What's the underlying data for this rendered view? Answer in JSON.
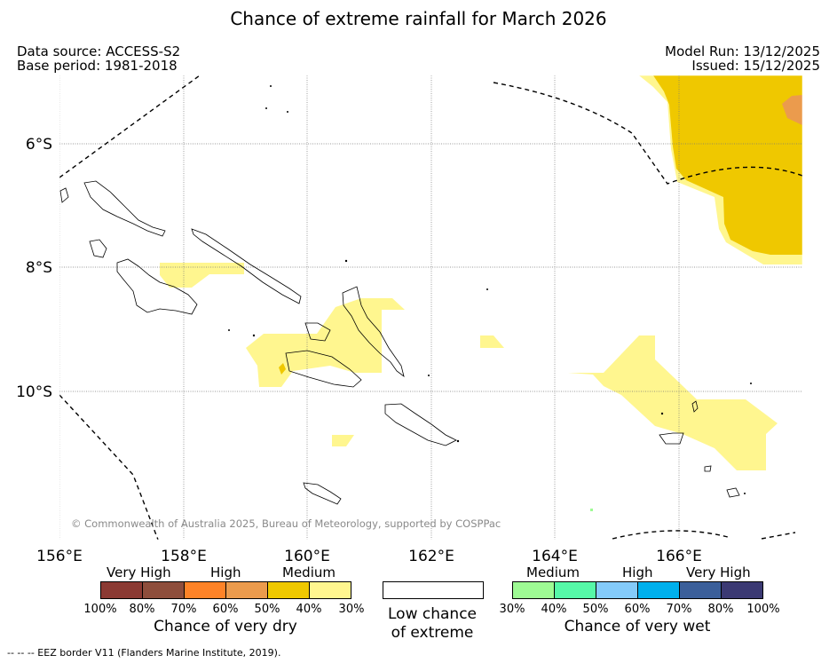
{
  "title": "Chance of extreme rainfall for March 2026",
  "header": {
    "data_source": "Data source: ACCESS-S2",
    "base_period": "Base period: 1981-2018",
    "model_run": "Model Run: 13/12/2025",
    "issued": "Issued: 15/12/2025"
  },
  "map": {
    "lat_labels": [
      "6°S",
      "8°S",
      "10°S"
    ],
    "lon_labels": [
      "156°E",
      "158°E",
      "160°E",
      "162°E",
      "164°E",
      "166°E"
    ],
    "copyright": "© Commonwealth of Australia 2025, Bureau of Meteorology, supported by COSPPac"
  },
  "legend": {
    "dry": {
      "categories": [
        "Very High",
        "High",
        "Medium"
      ],
      "colors": [
        "#8b3a33",
        "#8e4e3c",
        "#fe8327",
        "#eb9b4d",
        "#efc800",
        "#fff68f"
      ],
      "ticks": [
        "100%",
        "80%",
        "70%",
        "60%",
        "50%",
        "40%",
        "30%"
      ],
      "label": "Chance of very dry"
    },
    "low": {
      "label_line1": "Low chance",
      "label_line2": "of extreme"
    },
    "wet": {
      "categories": [
        "Medium",
        "High",
        "Very High"
      ],
      "colors": [
        "#9efb94",
        "#56f8a8",
        "#84cbfa",
        "#00b0ed",
        "#3b5f9a",
        "#3b3973"
      ],
      "ticks": [
        "30%",
        "40%",
        "50%",
        "60%",
        "70%",
        "80%",
        "100%"
      ],
      "label": "Chance of very wet"
    }
  },
  "footnote": "--  --  -- EEZ border V11 (Flanders Marine Institute, 2019)."
}
